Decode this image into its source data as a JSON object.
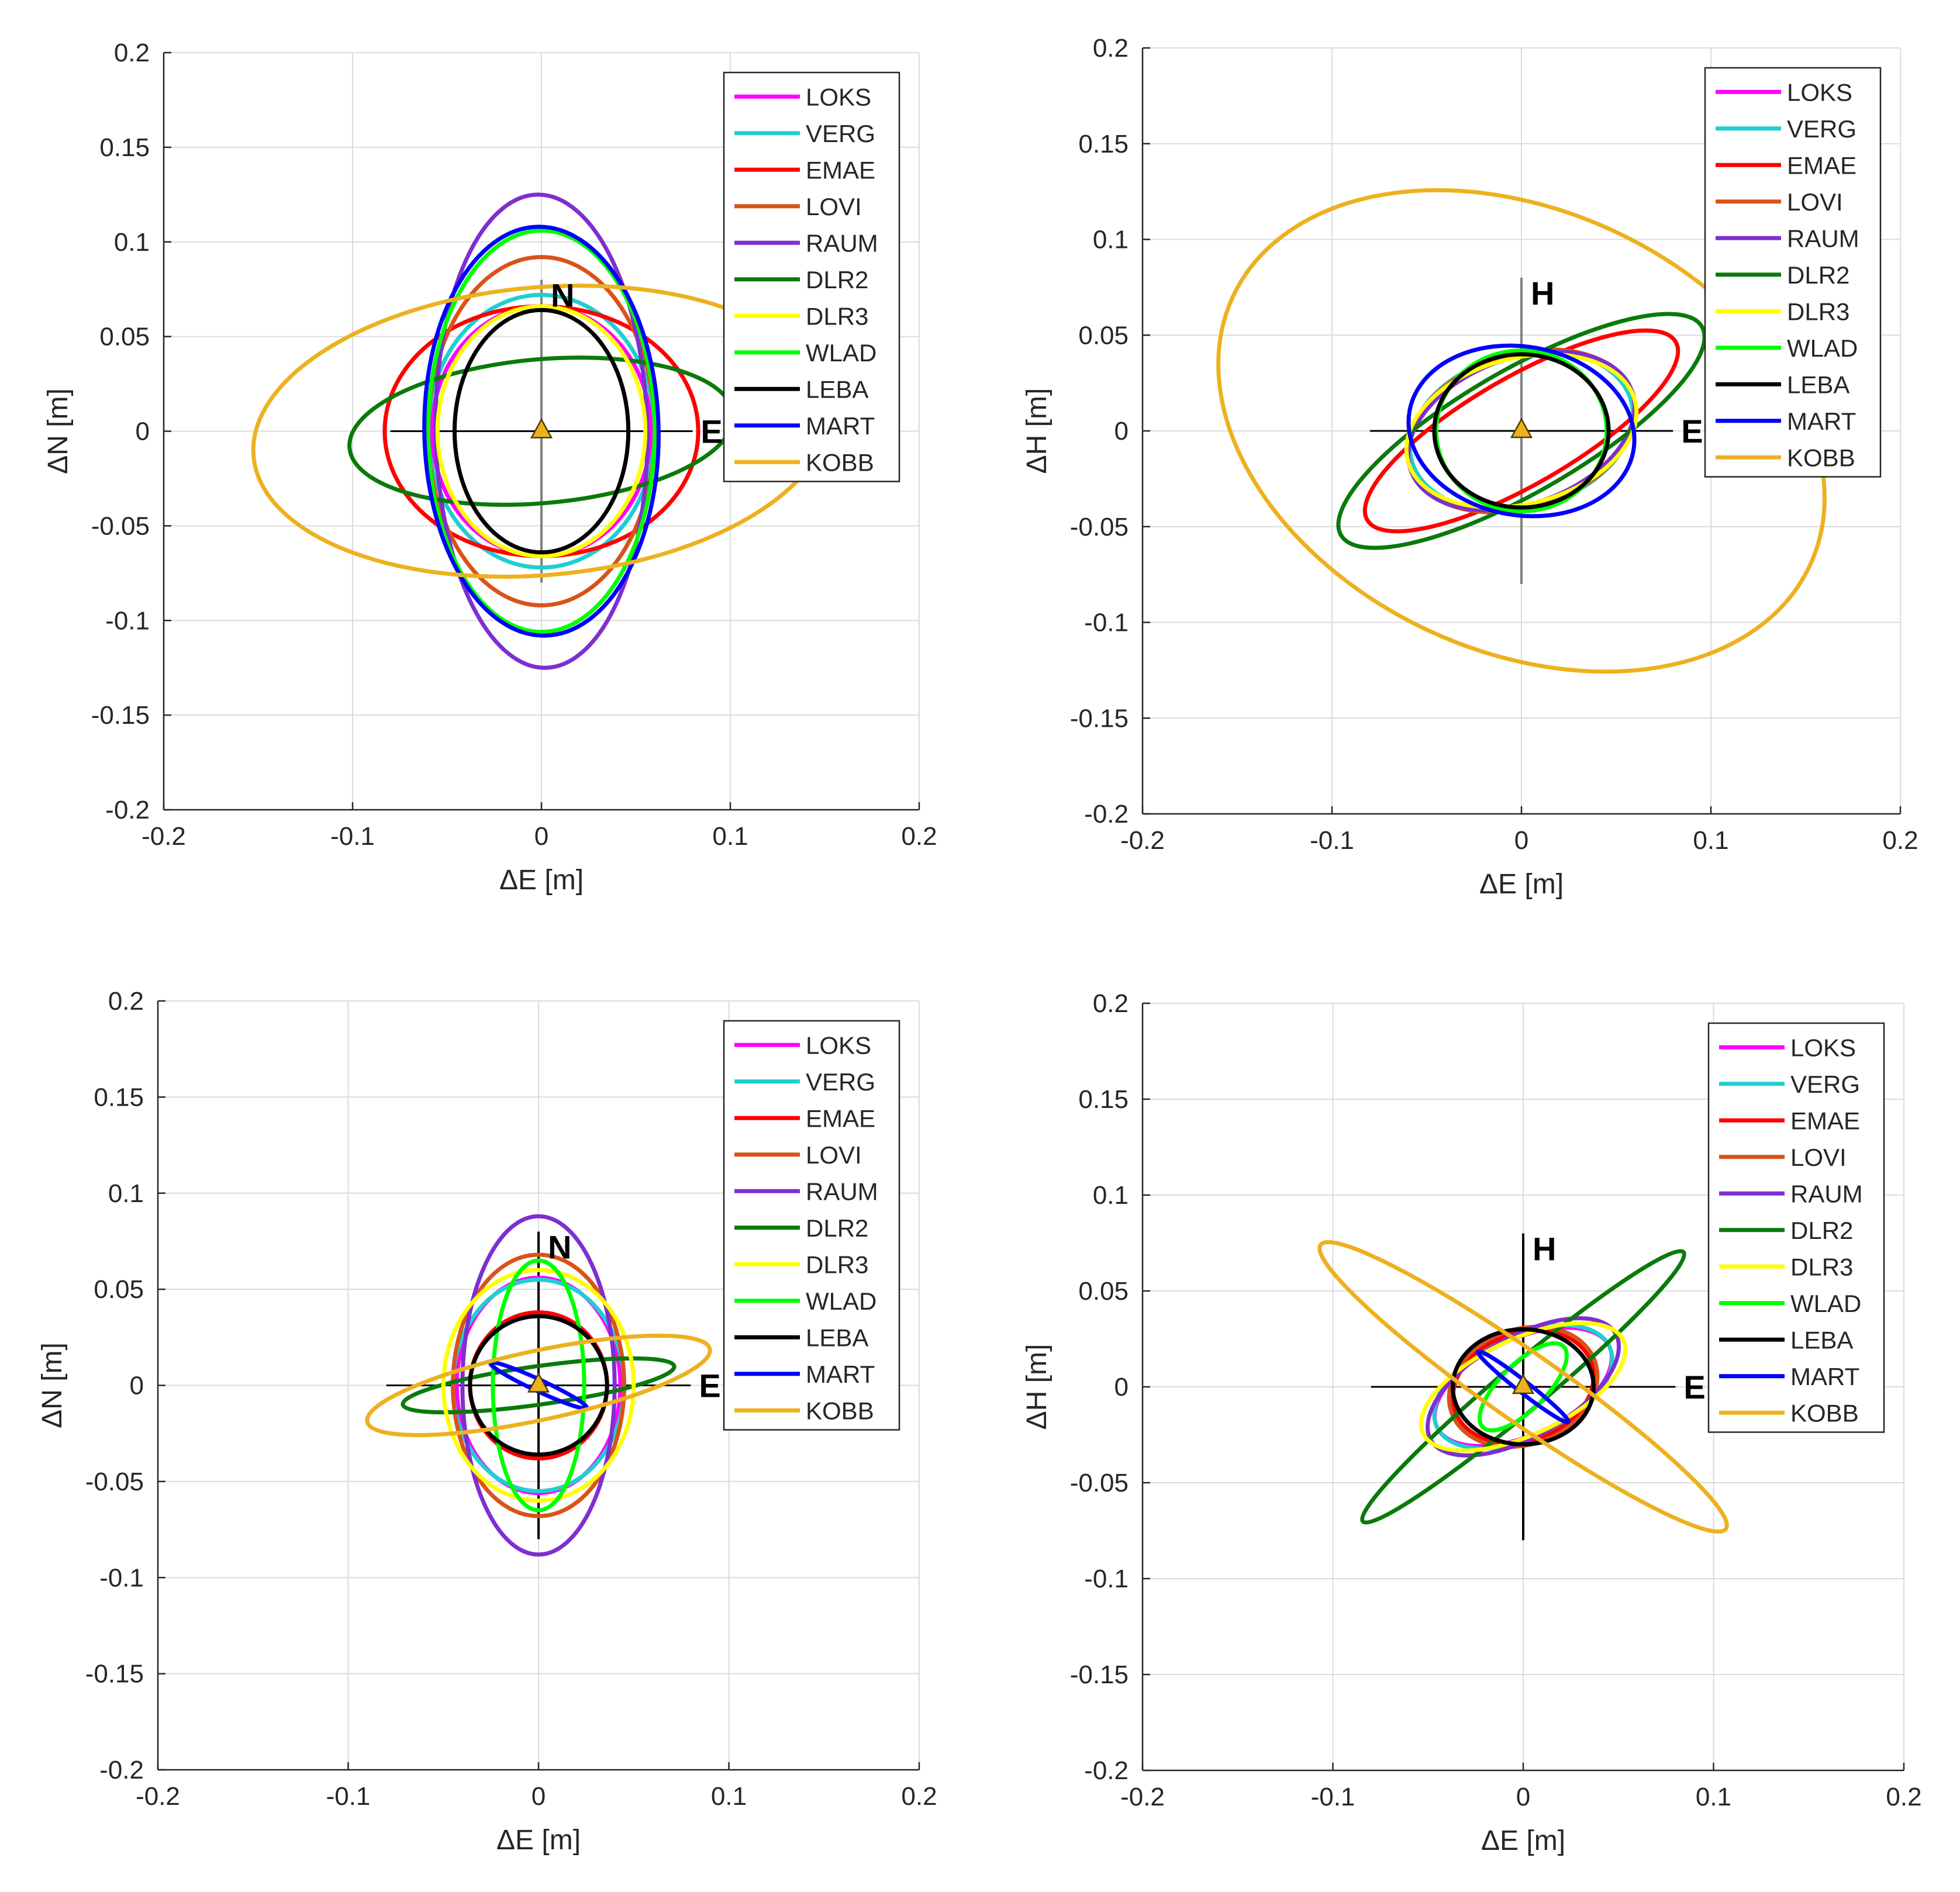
{
  "figure": {
    "legend_items": [
      "LOKS",
      "VERG",
      "EMAE",
      "LOVI",
      "RAUM",
      "DLR2",
      "DLR3",
      "WLAD",
      "LEBA",
      "MART",
      "KOBB"
    ],
    "station_colors": {
      "LOKS": "#ff00ff",
      "VERG": "#1fcfd0",
      "EMAE": "#ff0000",
      "LOVI": "#d95319",
      "RAUM": "#7e2fd0",
      "DLR2": "#0a7a0a",
      "DLR3": "#ffff00",
      "WLAD": "#00ff00",
      "LEBA": "#000000",
      "MART": "#0000ff",
      "KOBB": "#edb120"
    },
    "marker_color": "#edb120"
  },
  "chart_data": [
    {
      "type": "ellipse",
      "title": "",
      "xlabel": "ΔE [m]",
      "ylabel": "ΔN [m]",
      "xlim": [
        -0.2,
        0.2
      ],
      "ylim": [
        -0.2,
        0.2
      ],
      "xticks": [
        -0.2,
        -0.1,
        0,
        0.1,
        0.2
      ],
      "xtick_labels": [
        "-0.2",
        "-0.1",
        "0",
        "0.1",
        "0.2"
      ],
      "yticks": [
        0.2,
        0.15,
        0.1,
        0.05,
        0,
        -0.05,
        -0.1,
        -0.15,
        -0.2
      ],
      "ytick_labels": [
        "0.2",
        "0.15",
        "0.1",
        "0.05",
        "0",
        "-0.05",
        "-0.1",
        "-0.15",
        "-0.2"
      ],
      "grid": true,
      "legend_position": "top-right",
      "axis_labels": {
        "vertical": "N",
        "horizontal": "E"
      },
      "reference_axes_half_length": 0.08,
      "series": [
        {
          "name": "LOKS",
          "cx": 0,
          "cy": 0,
          "a": 0.058,
          "b": 0.066,
          "angle": 0
        },
        {
          "name": "VERG",
          "cx": 0,
          "cy": 0,
          "a": 0.06,
          "b": 0.072,
          "angle": 0
        },
        {
          "name": "EMAE",
          "cx": 0,
          "cy": 0,
          "a": 0.083,
          "b": 0.066,
          "angle": 0
        },
        {
          "name": "LOVI",
          "cx": 0,
          "cy": 0,
          "a": 0.06,
          "b": 0.092,
          "angle": 0
        },
        {
          "name": "RAUM",
          "cx": 0,
          "cy": 0,
          "a": 0.056,
          "b": 0.125,
          "angle": 1
        },
        {
          "name": "DLR2",
          "cx": 0,
          "cy": 0,
          "a": 0.102,
          "b": 0.038,
          "angle": 5
        },
        {
          "name": "DLR3",
          "cx": 0,
          "cy": 0,
          "a": 0.055,
          "b": 0.066,
          "angle": 0
        },
        {
          "name": "WLAD",
          "cx": 0,
          "cy": 0,
          "a": 0.06,
          "b": 0.106,
          "angle": 0
        },
        {
          "name": "LEBA",
          "cx": 0,
          "cy": 0,
          "a": 0.046,
          "b": 0.064,
          "angle": 0
        },
        {
          "name": "MART",
          "cx": 0,
          "cy": 0,
          "a": 0.062,
          "b": 0.108,
          "angle": 1
        },
        {
          "name": "KOBB",
          "cx": 0,
          "cy": 0,
          "a": 0.153,
          "b": 0.076,
          "angle": 5
        }
      ]
    },
    {
      "type": "ellipse",
      "title": "",
      "xlabel": "ΔE [m]",
      "ylabel": "ΔH [m]",
      "xlim": [
        -0.2,
        0.2
      ],
      "ylim": [
        -0.2,
        0.2
      ],
      "xticks": [
        -0.2,
        -0.1,
        0,
        0.1,
        0.2
      ],
      "xtick_labels": [
        "-0.2",
        "-0.1",
        "0",
        "0.1",
        "0.2"
      ],
      "yticks": [
        0.2,
        0.15,
        0.1,
        0.05,
        0,
        -0.05,
        -0.1,
        -0.15,
        -0.2
      ],
      "ytick_labels": [
        "0.2",
        "0.15",
        "0.1",
        "0.05",
        "0",
        "-0.05",
        "-0.1",
        "-0.15",
        "-0.2"
      ],
      "grid": true,
      "legend_position": "top-right",
      "axis_labels": {
        "vertical": "H",
        "horizontal": "E"
      },
      "reference_axes_half_length": 0.08,
      "series": [
        {
          "name": "LOKS",
          "cx": 0,
          "cy": 0,
          "a": 0.062,
          "b": 0.038,
          "angle": 18
        },
        {
          "name": "VERG",
          "cx": 0,
          "cy": 0,
          "a": 0.06,
          "b": 0.04,
          "angle": 15
        },
        {
          "name": "EMAE",
          "cx": 0,
          "cy": 0,
          "a": 0.094,
          "b": 0.028,
          "angle": 30
        },
        {
          "name": "LOVI",
          "cx": 0,
          "cy": 0,
          "a": 0.062,
          "b": 0.04,
          "angle": 18
        },
        {
          "name": "RAUM",
          "cx": 0,
          "cy": 0,
          "a": 0.062,
          "b": 0.038,
          "angle": 20
        },
        {
          "name": "DLR2",
          "cx": 0,
          "cy": 0,
          "a": 0.11,
          "b": 0.032,
          "angle": 30
        },
        {
          "name": "DLR3",
          "cx": 0,
          "cy": 0,
          "a": 0.062,
          "b": 0.038,
          "angle": 15
        },
        {
          "name": "WLAD",
          "cx": 0,
          "cy": 0,
          "a": 0.045,
          "b": 0.042,
          "angle": 0
        },
        {
          "name": "LEBA",
          "cx": 0,
          "cy": 0,
          "a": 0.046,
          "b": 0.04,
          "angle": 0
        },
        {
          "name": "MART",
          "cx": 0,
          "cy": 0,
          "a": 0.06,
          "b": 0.044,
          "angle": -10
        },
        {
          "name": "KOBB",
          "cx": 0,
          "cy": 0,
          "a": 0.168,
          "b": 0.115,
          "angle": -25
        }
      ]
    },
    {
      "type": "ellipse",
      "title": "",
      "xlabel": "ΔE [m]",
      "ylabel": "ΔN [m]",
      "xlim": [
        -0.2,
        0.2
      ],
      "ylim": [
        -0.2,
        0.2
      ],
      "xticks": [
        -0.2,
        -0.1,
        0,
        0.1,
        0.2
      ],
      "xtick_labels": [
        "-0.2",
        "-0.1",
        "0",
        "0.1",
        "0.2"
      ],
      "yticks": [
        0.2,
        0.15,
        0.1,
        0.05,
        0,
        -0.05,
        -0.1,
        -0.15,
        -0.2
      ],
      "ytick_labels": [
        "0.2",
        "0.15",
        "0.1",
        "0.05",
        "0",
        "-0.05",
        "-0.1",
        "-0.15",
        "-0.2"
      ],
      "grid": true,
      "legend_position": "top-right",
      "axis_labels": {
        "vertical": "N",
        "horizontal": "E"
      },
      "reference_axes_half_length": 0.08,
      "series": [
        {
          "name": "LOKS",
          "cx": 0,
          "cy": 0,
          "a": 0.043,
          "b": 0.056,
          "angle": 0
        },
        {
          "name": "VERG",
          "cx": 0,
          "cy": 0,
          "a": 0.045,
          "b": 0.055,
          "angle": 0
        },
        {
          "name": "EMAE",
          "cx": 0,
          "cy": 0,
          "a": 0.036,
          "b": 0.038,
          "angle": 0
        },
        {
          "name": "LOVI",
          "cx": 0,
          "cy": 0,
          "a": 0.045,
          "b": 0.068,
          "angle": 0
        },
        {
          "name": "RAUM",
          "cx": 0,
          "cy": 0,
          "a": 0.04,
          "b": 0.088,
          "angle": 0
        },
        {
          "name": "DLR2",
          "cx": 0,
          "cy": 0,
          "a": 0.072,
          "b": 0.01,
          "angle": 8
        },
        {
          "name": "DLR3",
          "cx": 0,
          "cy": 0,
          "a": 0.05,
          "b": 0.06,
          "angle": 0
        },
        {
          "name": "WLAD",
          "cx": 0,
          "cy": 0,
          "a": 0.024,
          "b": 0.065,
          "angle": 0
        },
        {
          "name": "LEBA",
          "cx": 0,
          "cy": 0,
          "a": 0.036,
          "b": 0.036,
          "angle": 0
        },
        {
          "name": "MART",
          "cx": 0,
          "cy": 0,
          "a": 0.028,
          "b": 0.003,
          "angle": -25
        },
        {
          "name": "KOBB",
          "cx": 0,
          "cy": 0,
          "a": 0.092,
          "b": 0.018,
          "angle": 12
        }
      ]
    },
    {
      "type": "ellipse",
      "title": "",
      "xlabel": "ΔE [m]",
      "ylabel": "ΔH [m]",
      "xlim": [
        -0.2,
        0.2
      ],
      "ylim": [
        -0.2,
        0.2
      ],
      "xticks": [
        -0.2,
        -0.1,
        0,
        0.1,
        0.2
      ],
      "xtick_labels": [
        "-0.2",
        "-0.1",
        "0",
        "0.1",
        "0.2"
      ],
      "yticks": [
        0.2,
        0.15,
        0.1,
        0.05,
        0,
        -0.05,
        -0.1,
        -0.15,
        -0.2
      ],
      "ytick_labels": [
        "0.2",
        "0.15",
        "0.1",
        "0.05",
        "0",
        "-0.05",
        "-0.1",
        "-0.15",
        "-0.2"
      ],
      "grid": true,
      "legend_position": "top-right",
      "axis_labels": {
        "vertical": "H",
        "horizontal": "E"
      },
      "reference_axes_half_length": 0.08,
      "series": [
        {
          "name": "LOKS",
          "cx": 0,
          "cy": 0,
          "a": 0.05,
          "b": 0.025,
          "angle": 25
        },
        {
          "name": "VERG",
          "cx": 0,
          "cy": 0,
          "a": 0.05,
          "b": 0.027,
          "angle": 25
        },
        {
          "name": "EMAE",
          "cx": 0,
          "cy": 0,
          "a": 0.038,
          "b": 0.028,
          "angle": 20
        },
        {
          "name": "LOVI",
          "cx": 0,
          "cy": 0,
          "a": 0.04,
          "b": 0.03,
          "angle": 20
        },
        {
          "name": "RAUM",
          "cx": 0,
          "cy": 0,
          "a": 0.056,
          "b": 0.026,
          "angle": 30
        },
        {
          "name": "DLR2",
          "cx": 0,
          "cy": 0,
          "a": 0.11,
          "b": 0.012,
          "angle": 40
        },
        {
          "name": "DLR3",
          "cx": 0,
          "cy": 0,
          "a": 0.058,
          "b": 0.025,
          "angle": 25
        },
        {
          "name": "WLAD",
          "cx": 0,
          "cy": 0,
          "a": 0.03,
          "b": 0.012,
          "angle": 45
        },
        {
          "name": "LEBA",
          "cx": 0,
          "cy": 0,
          "a": 0.037,
          "b": 0.03,
          "angle": 0
        },
        {
          "name": "MART",
          "cx": 0,
          "cy": 0,
          "a": 0.03,
          "b": 0.003,
          "angle": -38
        },
        {
          "name": "KOBB",
          "cx": 0,
          "cy": 0,
          "a": 0.13,
          "b": 0.018,
          "angle": -35
        }
      ]
    }
  ]
}
